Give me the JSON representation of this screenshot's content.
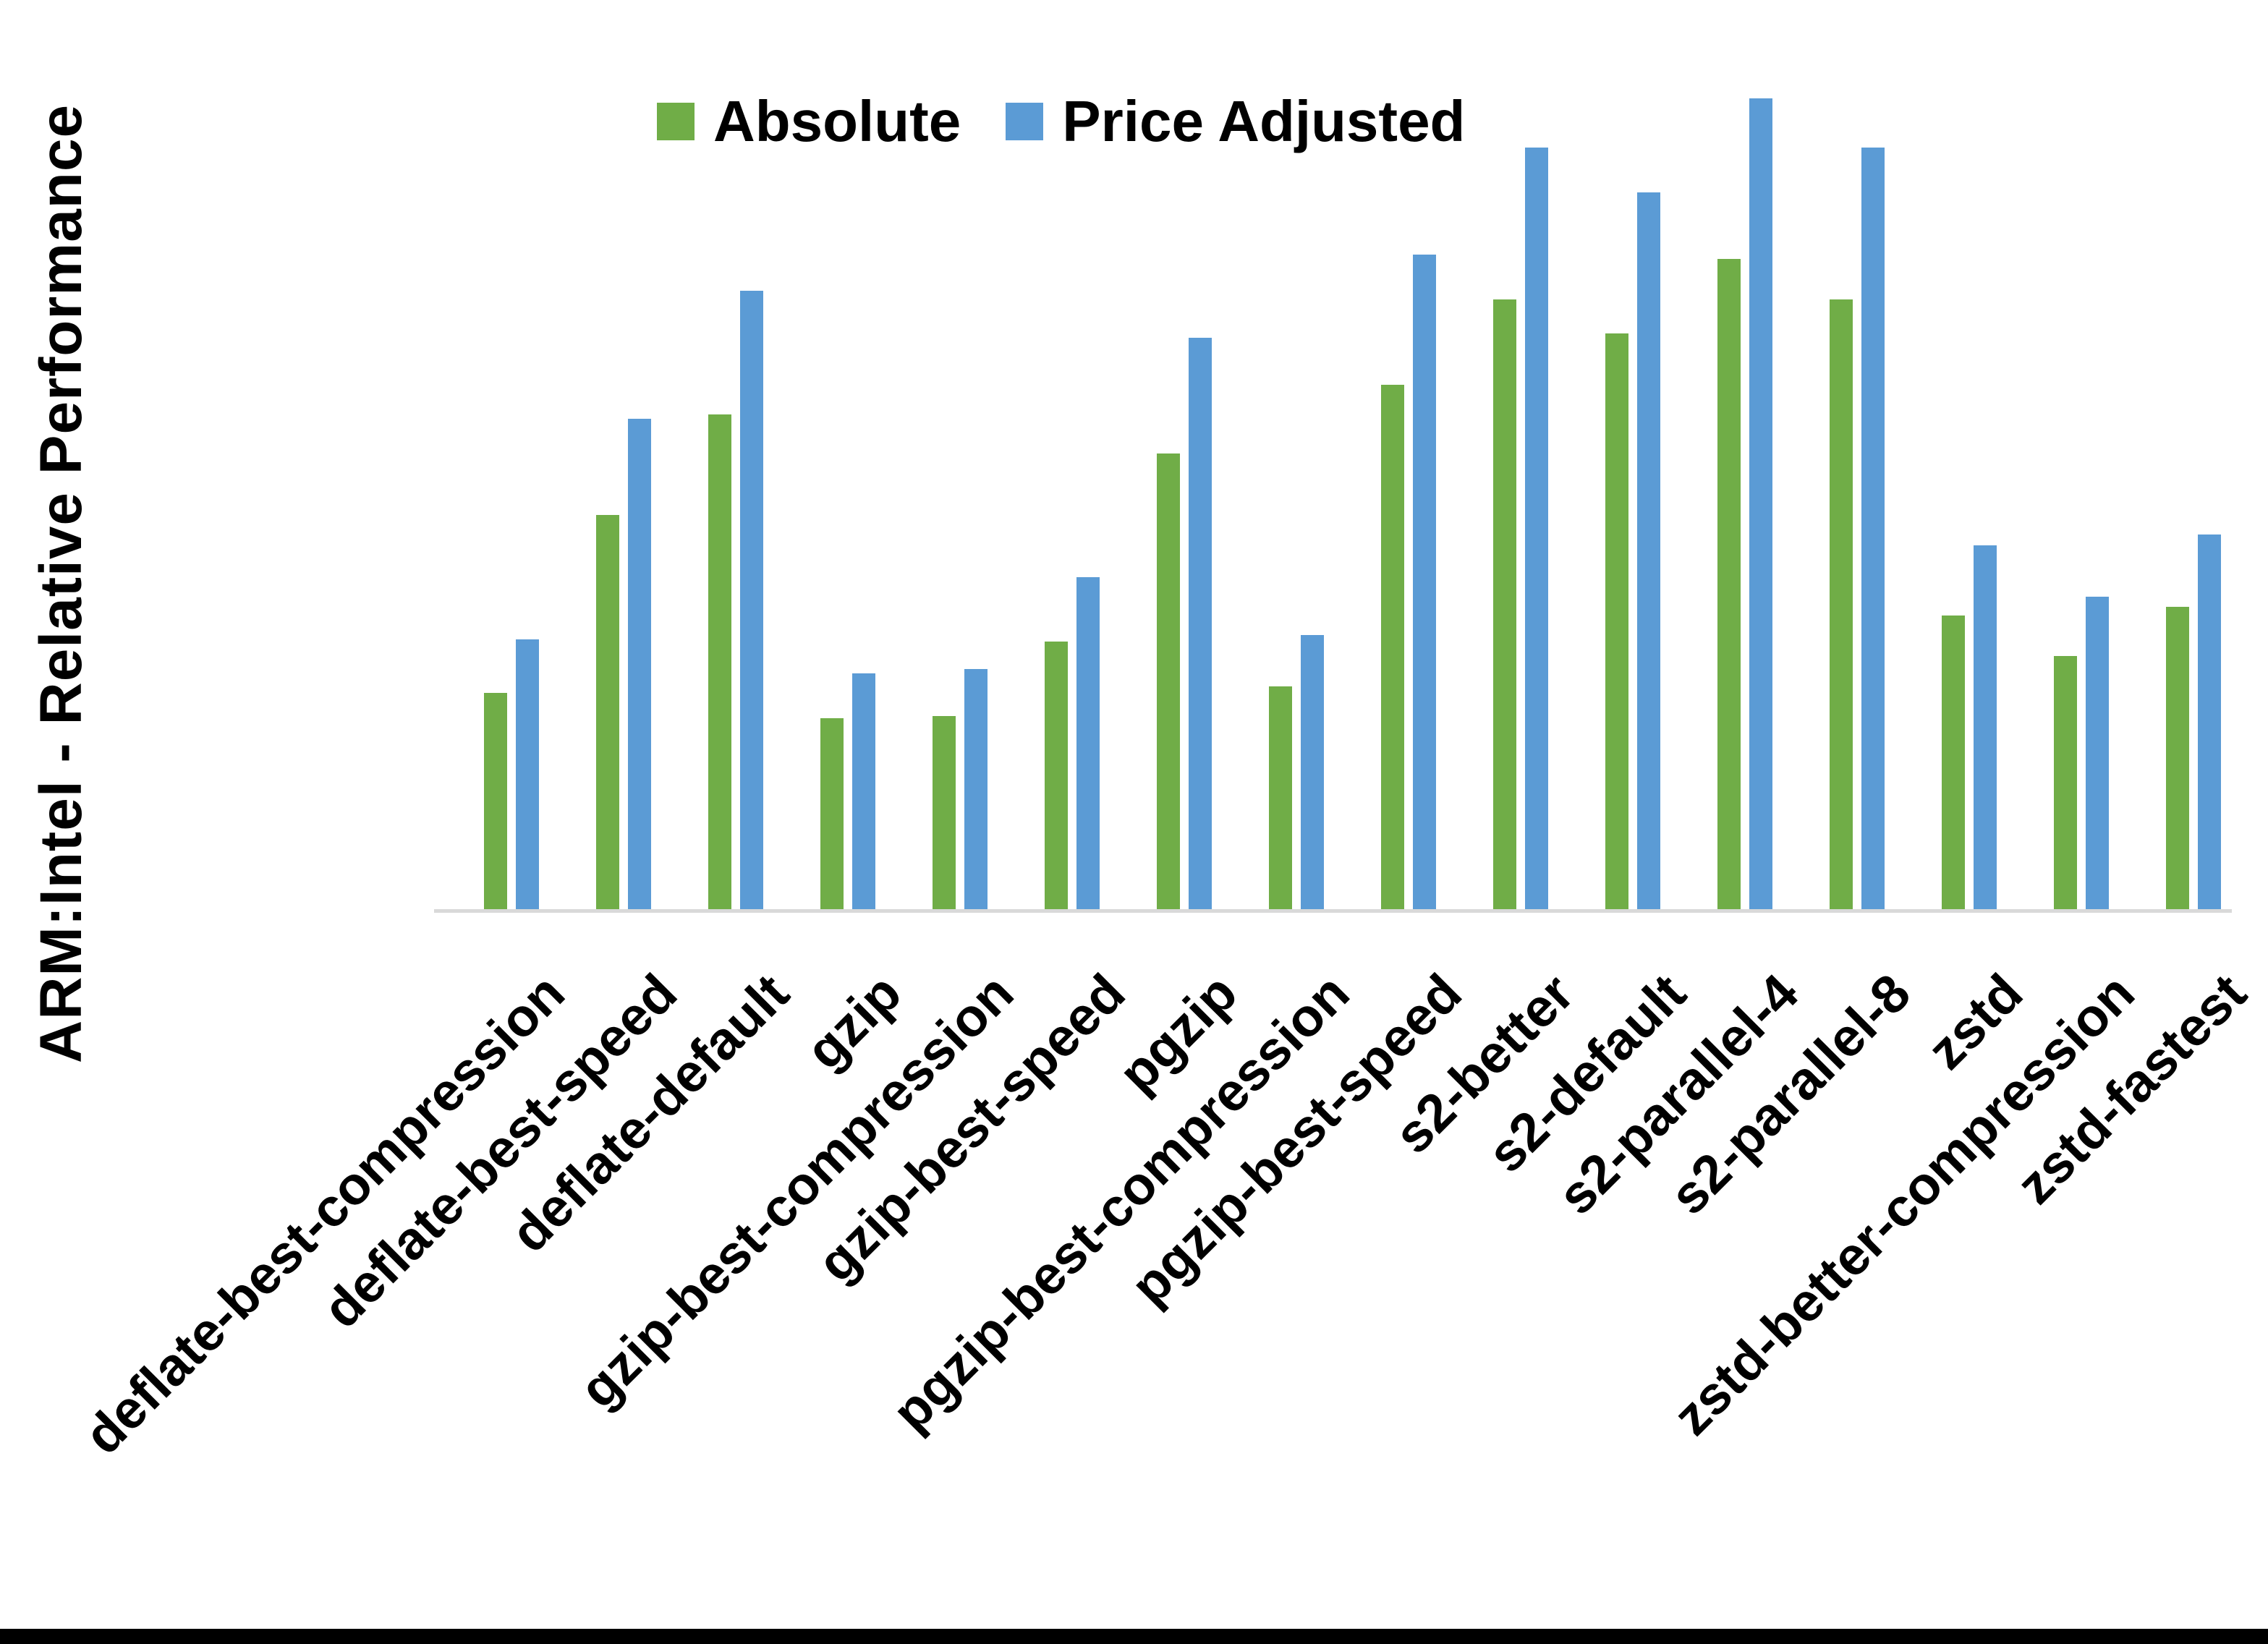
{
  "chart_data": {
    "type": "bar",
    "title": "",
    "xlabel": "",
    "ylabel": "ARM:Intel - Relative Performance",
    "ylim": [
      0.0,
      4.0
    ],
    "ytick_step": 0.5,
    "ytick_labels_top_to_bottom": [
      "4.0",
      "3.5",
      "3.0",
      "2.5",
      "2.0",
      "1.5",
      "1.0",
      "0.5",
      "0.0"
    ],
    "grid": false,
    "legend_position": "top-center",
    "categories": [
      "deflate-best-compression",
      "deflate-best-speed",
      "deflate-default",
      "gzip",
      "gzip-best-compression",
      "gzip-best-speed",
      "pgzip",
      "pgzip-best-compression",
      "pgzip-best-speed",
      "s2-better",
      "s2-default",
      "s2-parallel-4",
      "s2-parallel-8",
      "zstd",
      "zstd-better-compression",
      "zstd-fastest"
    ],
    "series": [
      {
        "name": "Absolute",
        "color": "#70AD47",
        "values": [
          1.02,
          1.85,
          2.32,
          0.9,
          0.91,
          1.26,
          2.14,
          1.05,
          2.46,
          2.86,
          2.7,
          3.05,
          2.86,
          1.38,
          1.19,
          1.42
        ]
      },
      {
        "name": "Price Adjusted",
        "color": "#5B9BD5",
        "values": [
          1.27,
          2.3,
          2.9,
          1.11,
          1.13,
          1.56,
          2.68,
          1.29,
          3.07,
          3.57,
          3.36,
          3.8,
          3.57,
          1.71,
          1.47,
          1.76
        ]
      }
    ],
    "axis_line_color": "#D9D9D9",
    "background_color": "#FFFFFF",
    "bottom_border_color": "#000000"
  }
}
